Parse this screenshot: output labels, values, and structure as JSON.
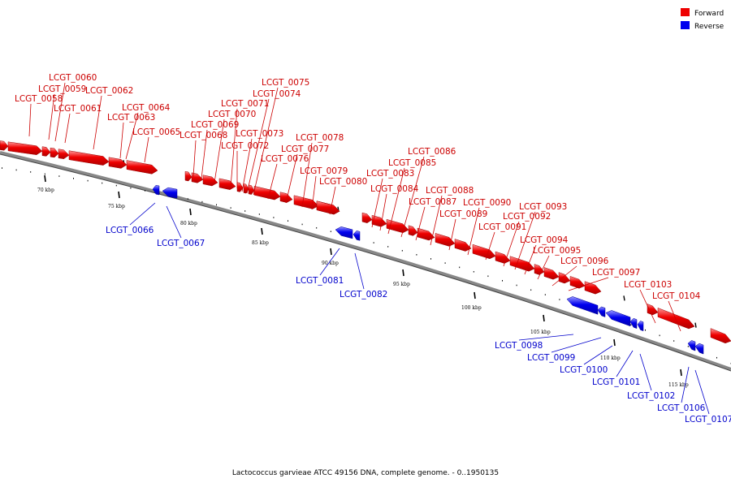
{
  "title": "Lactococcus garvieae ATCC 49156 DNA, complete genome. - 0..1950135",
  "legend": [
    {
      "label": "Forward",
      "color": "#ee0000"
    },
    {
      "label": "Reverse",
      "color": "#0000ee"
    }
  ],
  "colors": {
    "forward": "#ee0000",
    "reverse": "#0000ee",
    "forward_text": "#cc0000",
    "reverse_text": "#0000cc"
  },
  "ticks": [
    {
      "label": "70 kbp"
    },
    {
      "label": "75 kbp"
    },
    {
      "label": "80 kbp"
    },
    {
      "label": "85 kbp"
    },
    {
      "label": "90 kbp"
    },
    {
      "label": "95 kbp"
    },
    {
      "label": "100 kbp"
    },
    {
      "label": "105 kbp"
    },
    {
      "label": "110 kbp"
    },
    {
      "label": "115 kbp"
    }
  ],
  "genes": [
    {
      "name": "LCGT_0058",
      "strand": "forward"
    },
    {
      "name": "LCGT_0059",
      "strand": "forward"
    },
    {
      "name": "LCGT_0060",
      "strand": "forward"
    },
    {
      "name": "LCGT_0061",
      "strand": "forward"
    },
    {
      "name": "LCGT_0062",
      "strand": "forward"
    },
    {
      "name": "LCGT_0063",
      "strand": "forward"
    },
    {
      "name": "LCGT_0064",
      "strand": "forward"
    },
    {
      "name": "LCGT_0065",
      "strand": "forward"
    },
    {
      "name": "LCGT_0066",
      "strand": "reverse"
    },
    {
      "name": "LCGT_0067",
      "strand": "reverse"
    },
    {
      "name": "LCGT_0068",
      "strand": "forward"
    },
    {
      "name": "LCGT_0069",
      "strand": "forward"
    },
    {
      "name": "LCGT_0070",
      "strand": "forward"
    },
    {
      "name": "LCGT_0071",
      "strand": "forward"
    },
    {
      "name": "LCGT_0072",
      "strand": "forward"
    },
    {
      "name": "LCGT_0073",
      "strand": "forward"
    },
    {
      "name": "LCGT_0074",
      "strand": "forward"
    },
    {
      "name": "LCGT_0075",
      "strand": "forward"
    },
    {
      "name": "LCGT_0076",
      "strand": "forward"
    },
    {
      "name": "LCGT_0077",
      "strand": "forward"
    },
    {
      "name": "LCGT_0078",
      "strand": "forward"
    },
    {
      "name": "LCGT_0079",
      "strand": "forward"
    },
    {
      "name": "LCGT_0080",
      "strand": "forward"
    },
    {
      "name": "LCGT_0081",
      "strand": "reverse"
    },
    {
      "name": "LCGT_0082",
      "strand": "reverse"
    },
    {
      "name": "LCGT_0083",
      "strand": "forward"
    },
    {
      "name": "LCGT_0084",
      "strand": "forward"
    },
    {
      "name": "LCGT_0085",
      "strand": "forward"
    },
    {
      "name": "LCGT_0086",
      "strand": "forward"
    },
    {
      "name": "LCGT_0087",
      "strand": "forward"
    },
    {
      "name": "LCGT_0088",
      "strand": "forward"
    },
    {
      "name": "LCGT_0089",
      "strand": "forward"
    },
    {
      "name": "LCGT_0090",
      "strand": "forward"
    },
    {
      "name": "LCGT_0091",
      "strand": "forward"
    },
    {
      "name": "LCGT_0092",
      "strand": "forward"
    },
    {
      "name": "LCGT_0093",
      "strand": "forward"
    },
    {
      "name": "LCGT_0094",
      "strand": "forward"
    },
    {
      "name": "LCGT_0095",
      "strand": "forward"
    },
    {
      "name": "LCGT_0096",
      "strand": "forward"
    },
    {
      "name": "LCGT_0097",
      "strand": "forward"
    },
    {
      "name": "LCGT_0098",
      "strand": "reverse"
    },
    {
      "name": "LCGT_0099",
      "strand": "reverse"
    },
    {
      "name": "LCGT_0100",
      "strand": "reverse"
    },
    {
      "name": "LCGT_0101",
      "strand": "reverse"
    },
    {
      "name": "LCGT_0102",
      "strand": "reverse"
    },
    {
      "name": "LCGT_0103",
      "strand": "forward"
    },
    {
      "name": "LCGT_0104",
      "strand": "forward"
    },
    {
      "name": "LCGT_0106",
      "strand": "reverse"
    },
    {
      "name": "LCGT_0107",
      "strand": "reverse"
    }
  ]
}
